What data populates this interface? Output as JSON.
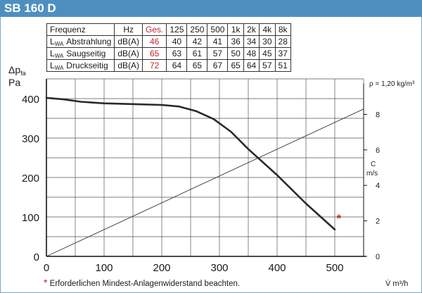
{
  "title": "SB 160 D",
  "table": {
    "header": [
      "Frequenz",
      "Hz",
      "Ges.",
      "125",
      "250",
      "500",
      "1k",
      "2k",
      "4k",
      "8k"
    ],
    "rows": [
      {
        "lw": "L",
        "sub": "WA",
        "name": "Abstrahlung",
        "unit": "dB(A)",
        "ges": "46",
        "values": [
          "40",
          "42",
          "41",
          "36",
          "34",
          "30",
          "28"
        ]
      },
      {
        "lw": "L",
        "sub": "WA",
        "name": "Saugseitig",
        "unit": "dB(A)",
        "ges": "65",
        "values": [
          "63",
          "61",
          "57",
          "50",
          "48",
          "45",
          "37"
        ]
      },
      {
        "lw": "L",
        "sub": "WA",
        "name": "Druckseitig",
        "unit": "dB(A)",
        "ges": "72",
        "values": [
          "64",
          "65",
          "67",
          "65",
          "64",
          "57",
          "51"
        ]
      }
    ]
  },
  "density_label": "ρ = 1,20 kg/m³",
  "footnote": {
    "star": "*",
    "text": "Erforderlichen Mindest-Anlagenwiderstand beachten."
  },
  "colors": {
    "title_bar": "#4f8fc0",
    "accent_red": "#c0262c",
    "curve": "#2a2a2a"
  },
  "chart_data": {
    "type": "line",
    "ylabel_main": "Δp",
    "ylabel_sub": "fa",
    "yunit": "Pa",
    "xlabel": "V̇ m³/h",
    "y2label": "C",
    "y2unit": "m/s",
    "xlim": [
      0,
      550
    ],
    "ylim": [
      0,
      450
    ],
    "y2lim": [
      0,
      10
    ],
    "x_ticks": [
      0,
      100,
      200,
      300,
      400,
      500
    ],
    "y_ticks": [
      0,
      100,
      200,
      300,
      400
    ],
    "y2_ticks": [
      0,
      2,
      4,
      6,
      8
    ],
    "grid": true,
    "series": [
      {
        "role": "fan-curve",
        "x": [
          0,
          30,
          60,
          100,
          150,
          200,
          230,
          260,
          290,
          320,
          350,
          400,
          450,
          500
        ],
        "y": [
          402,
          398,
          392,
          388,
          386,
          384,
          380,
          368,
          348,
          316,
          272,
          206,
          134,
          68
        ]
      },
      {
        "role": "velocity",
        "axis": "right",
        "x": [
          0,
          550
        ],
        "y": [
          0,
          8.3
        ]
      }
    ],
    "marker": {
      "label": "*",
      "x": 507,
      "y": 2.2,
      "axis": "right"
    }
  }
}
